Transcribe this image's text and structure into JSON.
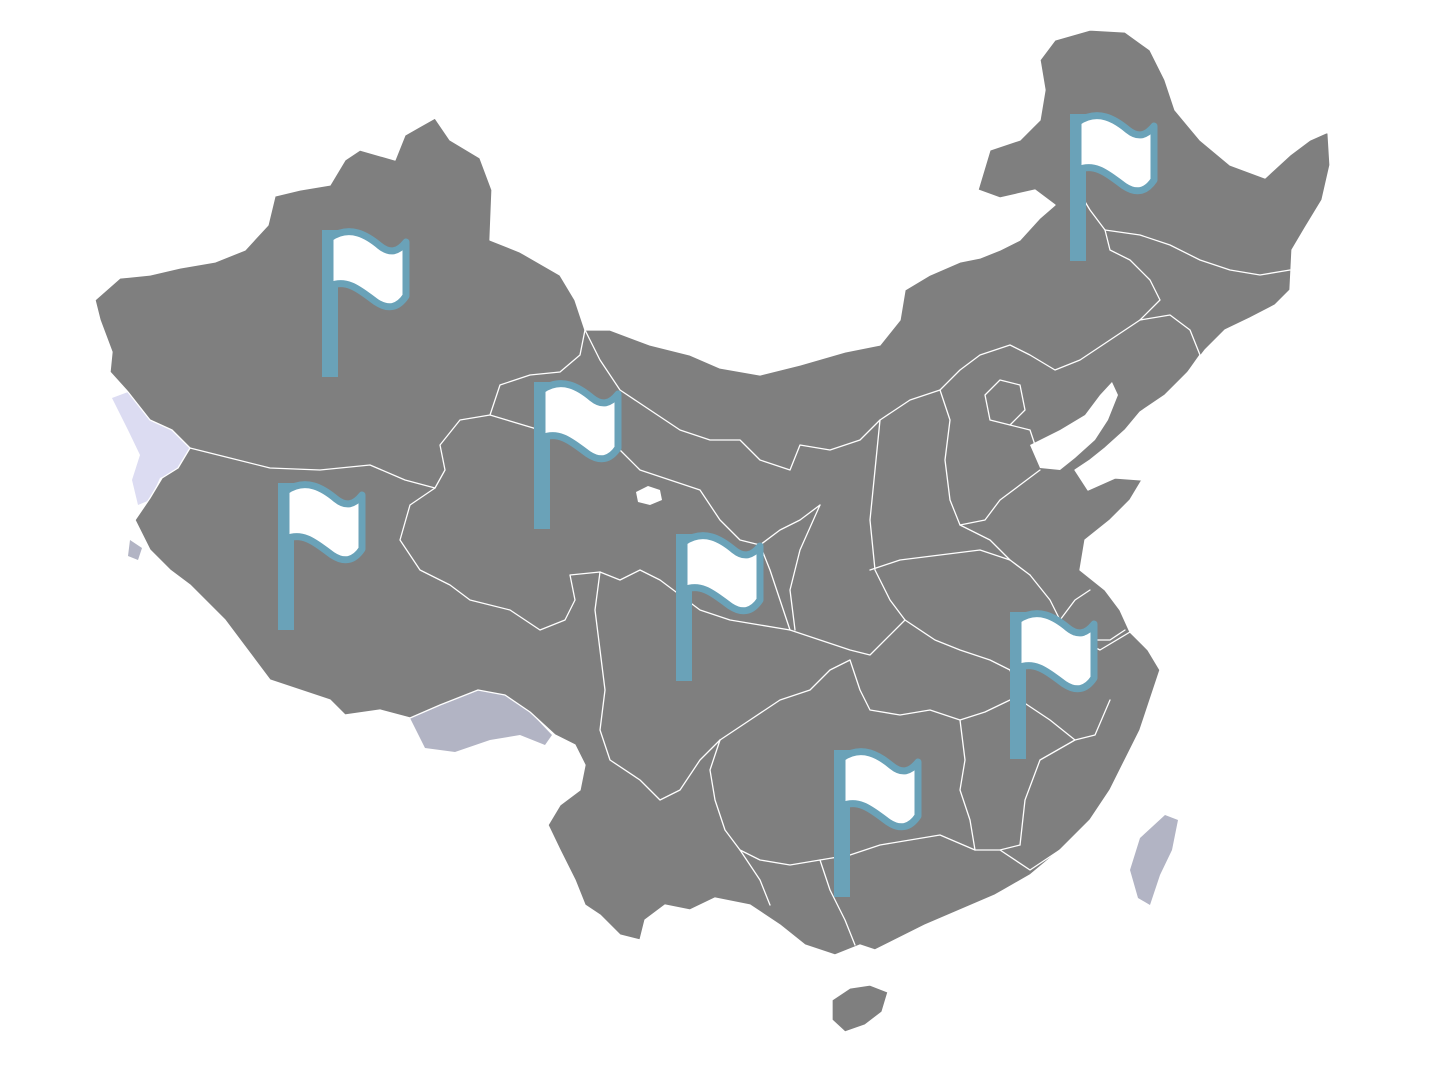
{
  "colors": {
    "land": "#7f7f7f",
    "border": "#ffffff",
    "disputed_light": "#dcdcf2",
    "disputed_dark": "#b2b4c4",
    "taiwan": "#b2b4c4",
    "flag_outline": "#6aa2b8",
    "flag_fill": "#ffffff",
    "background": "#ffffff"
  },
  "markers": [
    {
      "icon": "flag-icon",
      "region": "northwest"
    },
    {
      "icon": "flag-icon",
      "region": "northeast"
    },
    {
      "icon": "flag-icon",
      "region": "north-central"
    },
    {
      "icon": "flag-icon",
      "region": "southwest"
    },
    {
      "icon": "flag-icon",
      "region": "central"
    },
    {
      "icon": "flag-icon",
      "region": "east"
    },
    {
      "icon": "flag-icon",
      "region": "south"
    }
  ]
}
